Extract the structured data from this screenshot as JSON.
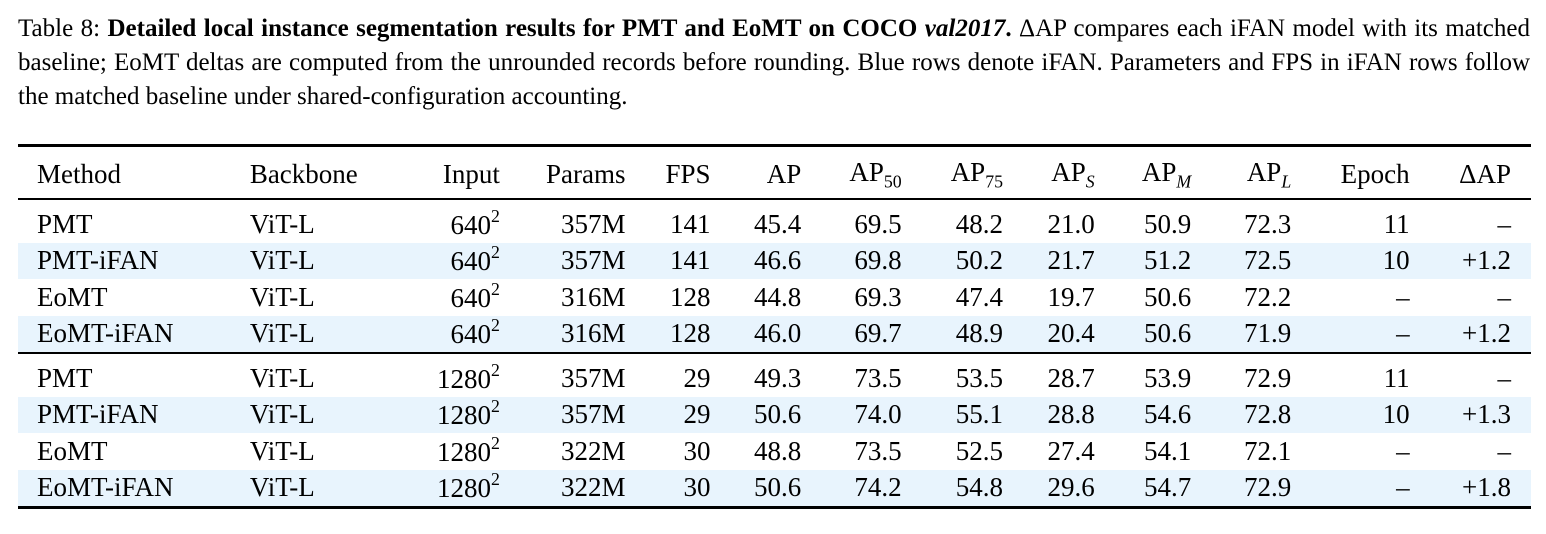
{
  "caption": {
    "prefix": "Table 8: ",
    "bold_title": "Detailed local instance segmentation results for PMT and EoMT on COCO ",
    "bold_italic_dataset": "val2017",
    "bold_period": ".",
    "body": " ΔAP compares each iFAN model with its matched baseline; EoMT deltas are computed from the unrounded records before rounding. Blue rows denote iFAN. Parameters and FPS in iFAN rows follow the matched baseline under shared-configuration accounting."
  },
  "table": {
    "headers": {
      "method": "Method",
      "backbone": "Backbone",
      "input": "Input",
      "params": "Params",
      "fps": "FPS",
      "ap": "AP",
      "ap50_base": "AP",
      "ap50_sub": "50",
      "ap75_base": "AP",
      "ap75_sub": "75",
      "aps_base": "AP",
      "aps_sub": "S",
      "apm_base": "AP",
      "apm_sub": "M",
      "apl_base": "AP",
      "apl_sub": "L",
      "epoch": "Epoch",
      "dap": "ΔAP"
    },
    "rows": [
      {
        "method": "PMT",
        "backbone": "ViT-L",
        "input_base": "640",
        "input_exp": "2",
        "params": "357M",
        "fps": "141",
        "ap": "45.4",
        "ap50": "69.5",
        "ap75": "48.2",
        "aps": "21.0",
        "apm": "50.9",
        "apl": "72.3",
        "epoch": "11",
        "dap": "–"
      },
      {
        "method": "PMT-iFAN",
        "backbone": "ViT-L",
        "input_base": "640",
        "input_exp": "2",
        "params": "357M",
        "fps": "141",
        "ap": "46.6",
        "ap50": "69.8",
        "ap75": "50.2",
        "aps": "21.7",
        "apm": "51.2",
        "apl": "72.5",
        "epoch": "10",
        "dap": "+1.2"
      },
      {
        "method": "EoMT",
        "backbone": "ViT-L",
        "input_base": "640",
        "input_exp": "2",
        "params": "316M",
        "fps": "128",
        "ap": "44.8",
        "ap50": "69.3",
        "ap75": "47.4",
        "aps": "19.7",
        "apm": "50.6",
        "apl": "72.2",
        "epoch": "–",
        "dap": "–"
      },
      {
        "method": "EoMT-iFAN",
        "backbone": "ViT-L",
        "input_base": "640",
        "input_exp": "2",
        "params": "316M",
        "fps": "128",
        "ap": "46.0",
        "ap50": "69.7",
        "ap75": "48.9",
        "aps": "20.4",
        "apm": "50.6",
        "apl": "71.9",
        "epoch": "–",
        "dap": "+1.2"
      },
      {
        "method": "PMT",
        "backbone": "ViT-L",
        "input_base": "1280",
        "input_exp": "2",
        "params": "357M",
        "fps": "29",
        "ap": "49.3",
        "ap50": "73.5",
        "ap75": "53.5",
        "aps": "28.7",
        "apm": "53.9",
        "apl": "72.9",
        "epoch": "11",
        "dap": "–"
      },
      {
        "method": "PMT-iFAN",
        "backbone": "ViT-L",
        "input_base": "1280",
        "input_exp": "2",
        "params": "357M",
        "fps": "29",
        "ap": "50.6",
        "ap50": "74.0",
        "ap75": "55.1",
        "aps": "28.8",
        "apm": "54.6",
        "apl": "72.8",
        "epoch": "10",
        "dap": "+1.3"
      },
      {
        "method": "EoMT",
        "backbone": "ViT-L",
        "input_base": "1280",
        "input_exp": "2",
        "params": "322M",
        "fps": "30",
        "ap": "48.8",
        "ap50": "73.5",
        "ap75": "52.5",
        "aps": "27.4",
        "apm": "54.1",
        "apl": "72.1",
        "epoch": "–",
        "dap": "–"
      },
      {
        "method": "EoMT-iFAN",
        "backbone": "ViT-L",
        "input_base": "1280",
        "input_exp": "2",
        "params": "322M",
        "fps": "30",
        "ap": "50.6",
        "ap50": "74.2",
        "ap75": "54.8",
        "aps": "29.6",
        "apm": "54.7",
        "apl": "72.9",
        "epoch": "–",
        "dap": "+1.8"
      }
    ]
  },
  "colors": {
    "ifan_row_background": "#e8f4fd",
    "rule_color": "#000000"
  }
}
